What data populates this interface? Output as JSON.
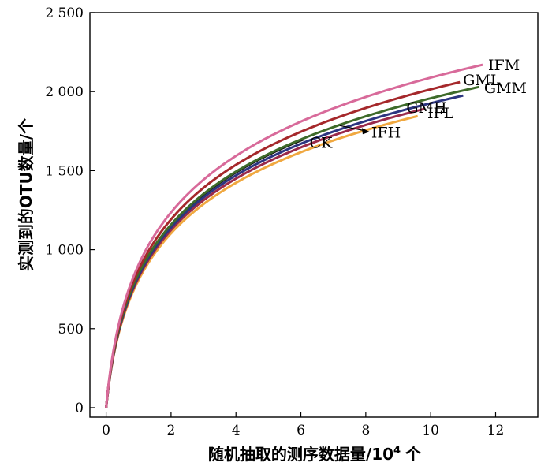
{
  "chart_data": {
    "type": "line",
    "xlabel": "随机抽取的测序数据量/10",
    "xlabel_sup": "4",
    "xlabel_unit": "个",
    "ylabel": "实测到的OTU数量/个",
    "xlim": [
      -0.5,
      13.3
    ],
    "ylim": [
      -60,
      2500
    ],
    "x_ticks": [
      0,
      2,
      4,
      6,
      8,
      10,
      12
    ],
    "x_tick_labels": [
      "0",
      "2",
      "4",
      "6",
      "8",
      "10",
      "12"
    ],
    "y_ticks": [
      0,
      500,
      1000,
      1500,
      2000,
      2500
    ],
    "y_tick_labels": [
      "0",
      "500",
      "1 000",
      "1 500",
      "2 000",
      "2 500"
    ],
    "grid": false,
    "legend": "none",
    "series": [
      {
        "name": "IFM",
        "color": "#d86a9a",
        "x_end": 11.6,
        "y_end": 2170
      },
      {
        "name": "GML",
        "color": "#a5282b",
        "x_end": 10.9,
        "y_end": 2060
      },
      {
        "name": "GMM",
        "color": "#3e6b2a",
        "x_end": 11.5,
        "y_end": 2030
      },
      {
        "name": "GMH",
        "color": "#2c3580",
        "x_end": 11.0,
        "y_end": 1975
      },
      {
        "name": "IFL",
        "color": "#9a2a4a",
        "x_end": 9.8,
        "y_end": 1890
      },
      {
        "name": "IFH",
        "color": "#f0a840",
        "x_end": 9.6,
        "y_end": 1845
      },
      {
        "name": "CK",
        "color": "#111111",
        "x_end": 6.1,
        "y_end": 1700
      }
    ]
  }
}
